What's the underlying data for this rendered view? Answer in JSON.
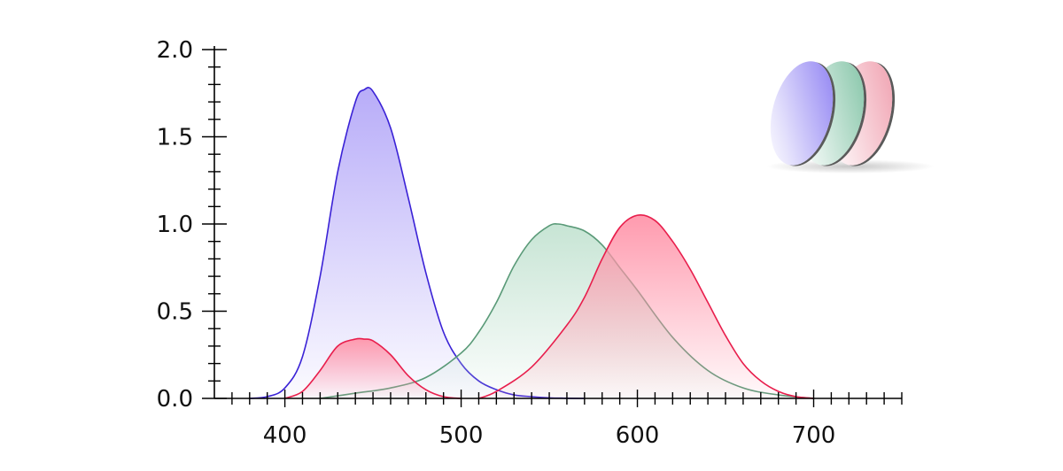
{
  "chart_data": {
    "type": "area",
    "title": "",
    "xlabel": "",
    "ylabel": "",
    "xlim": [
      360,
      750
    ],
    "ylim": [
      0,
      2.0
    ],
    "x_ticks": [
      400,
      500,
      600,
      700
    ],
    "x_tick_labels": [
      "400",
      "500",
      "600",
      "700"
    ],
    "y_ticks": [
      0,
      0.5,
      1.0,
      1.5,
      2.0
    ],
    "y_tick_labels": [
      "0.0",
      "0.5",
      "1.0",
      "1.5",
      "2.0"
    ],
    "grid": false,
    "legend": "none",
    "series": [
      {
        "color": "#3a22d6",
        "fill": "#b4a8f8",
        "x": [
          380,
          390,
          400,
          410,
          420,
          430,
          440,
          445,
          450,
          460,
          470,
          480,
          490,
          500,
          510,
          520,
          530,
          540,
          550,
          560,
          570
        ],
        "y": [
          0.0,
          0.01,
          0.06,
          0.24,
          0.7,
          1.3,
          1.7,
          1.77,
          1.76,
          1.55,
          1.15,
          0.72,
          0.38,
          0.2,
          0.1,
          0.05,
          0.02,
          0.01,
          0.003,
          0.001,
          0.0
        ]
      },
      {
        "color": "#5a9a78",
        "fill": "#c4e3d2",
        "x": [
          420,
          440,
          460,
          480,
          500,
          510,
          520,
          530,
          540,
          550,
          555,
          560,
          570,
          580,
          590,
          600,
          620,
          640,
          660,
          680,
          700
        ],
        "y": [
          0.0,
          0.03,
          0.06,
          0.12,
          0.26,
          0.38,
          0.55,
          0.76,
          0.91,
          0.99,
          1.0,
          0.99,
          0.96,
          0.88,
          0.75,
          0.62,
          0.35,
          0.16,
          0.06,
          0.02,
          0.0
        ]
      },
      {
        "color": "#e81e4c",
        "fill": "#ff95aa",
        "x": [
          400,
          410,
          420,
          430,
          440,
          445,
          450,
          460,
          470,
          480,
          490,
          500
        ],
        "y": [
          0.0,
          0.04,
          0.16,
          0.3,
          0.34,
          0.34,
          0.33,
          0.25,
          0.13,
          0.05,
          0.01,
          0.0
        ]
      },
      {
        "color": "#e81e4c",
        "fill": "#ff95aa",
        "x": [
          510,
          520,
          540,
          560,
          570,
          580,
          590,
          600,
          610,
          620,
          630,
          640,
          650,
          660,
          670,
          680,
          690,
          700
        ],
        "y": [
          0.0,
          0.04,
          0.18,
          0.42,
          0.58,
          0.8,
          0.98,
          1.05,
          1.02,
          0.9,
          0.74,
          0.55,
          0.36,
          0.2,
          0.1,
          0.04,
          0.01,
          0.0
        ]
      }
    ]
  },
  "decoration": {
    "icon": "rgb-filter-lenses-icon",
    "lenses": [
      {
        "name": "blue-lens",
        "color": "#8a7cf2"
      },
      {
        "name": "green-lens",
        "color": "#7dc1a2"
      },
      {
        "name": "red-lens",
        "color": "#ef9bab"
      }
    ]
  }
}
